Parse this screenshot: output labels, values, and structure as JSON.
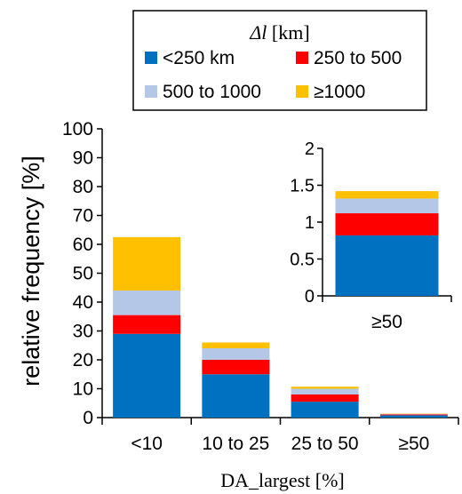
{
  "chart_data": {
    "type": "bar",
    "stacked": true,
    "legend": {
      "title_symbol": "Δl",
      "title_unit": " [km]",
      "placement": "top",
      "border": true
    },
    "xlabel": "DA_largest [%]",
    "ylabel": "relative frequency [%]",
    "ylim": [
      0,
      100
    ],
    "yticks": [
      0,
      10,
      20,
      30,
      40,
      50,
      60,
      70,
      80,
      90,
      100
    ],
    "grid": false,
    "categories": [
      "<10",
      "10 to 25",
      "25 to 50",
      "≥50"
    ],
    "series": [
      {
        "name": "<250 km",
        "color": "#0070c0",
        "values": [
          29,
          15,
          5.5,
          0.8
        ]
      },
      {
        "name": "250 to 500",
        "color": "#ff0000",
        "values": [
          6.5,
          5,
          2.5,
          0.3
        ]
      },
      {
        "name": "500 to 1000",
        "color": "#b4c7e7",
        "values": [
          8.5,
          4,
          2,
          0.2
        ]
      },
      {
        "name": "≥1000",
        "color": "#ffc000",
        "values": [
          18.5,
          2,
          0.7,
          0.1
        ]
      }
    ],
    "inset": {
      "type": "bar",
      "stacked": true,
      "category": "≥50",
      "ylim": [
        0,
        2
      ],
      "yticks": [
        "0",
        "0.5",
        "1",
        "1.5",
        "2"
      ],
      "ytick_values": [
        0,
        0.5,
        1,
        1.5,
        2
      ],
      "values": [
        0.82,
        0.3,
        0.2,
        0.1
      ]
    }
  }
}
